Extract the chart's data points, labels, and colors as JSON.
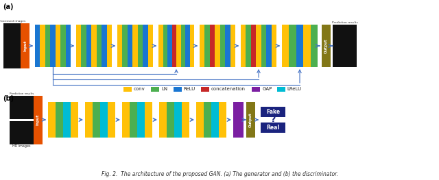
{
  "bg_color": "#ffffff",
  "colors": {
    "conv": "#FFC107",
    "LN": "#4CAF50",
    "ReLU": "#1976D2",
    "concatenation": "#C62828",
    "GAP": "#7B1FA2",
    "LReLU": "#00BCD4",
    "input_box": "#E65100",
    "output_box": "#827717",
    "arrow": "#4472C4",
    "fake_real_box": "#1A237E",
    "q_mark": "#1A237E"
  },
  "legend_items": [
    {
      "label": "conv",
      "color": "#FFC107"
    },
    {
      "label": "LN",
      "color": "#4CAF50"
    },
    {
      "label": "ReLU",
      "color": "#1976D2"
    },
    {
      "label": "concatenation",
      "color": "#C62828"
    },
    {
      "label": "GAP",
      "color": "#7B1FA2"
    },
    {
      "label": "LReLU",
      "color": "#00BCD4"
    }
  ],
  "caption": "Fig. 2.  The architecture of the proposed GAN. (a) The generator and (b) the discriminator.",
  "gen_stripes": [
    [
      "#1976D2",
      "#FFC107",
      "#4CAF50",
      "#1976D2",
      "#FFC107",
      "#4CAF50",
      "#1976D2"
    ],
    [
      "#FFC107",
      "#4CAF50",
      "#1976D2",
      "#FFC107",
      "#4CAF50",
      "#1976D2",
      "#FFC107"
    ],
    [
      "#FFC107",
      "#4CAF50",
      "#1976D2",
      "#FFC107",
      "#4CAF50",
      "#1976D2",
      "#FFC107"
    ],
    [
      "#FFC107",
      "#4CAF50",
      "#1976D2",
      "#C62828",
      "#FFC107",
      "#4CAF50",
      "#1976D2",
      "#FFC107"
    ],
    [
      "#FFC107",
      "#4CAF50",
      "#C62828",
      "#FFC107",
      "#4CAF50",
      "#1976D2",
      "#FFC107"
    ],
    [
      "#FFC107",
      "#4CAF50",
      "#C62828",
      "#FFC107",
      "#4CAF50",
      "#1976D2",
      "#FFC107"
    ],
    [
      "#FFC107",
      "#4CAF50",
      "#1976D2",
      "#FFC107",
      "#4CAF50"
    ]
  ],
  "disc_stripes": [
    [
      "#FFC107",
      "#4CAF50",
      "#00BCD4",
      "#FFC107"
    ],
    [
      "#FFC107",
      "#4CAF50",
      "#00BCD4",
      "#FFC107"
    ],
    [
      "#FFC107",
      "#4CAF50",
      "#00BCD4",
      "#FFC107"
    ],
    [
      "#FFC107",
      "#4CAF50",
      "#00BCD4",
      "#FFC107"
    ],
    [
      "#FFC107",
      "#4CAF50",
      "#00BCD4",
      "#FFC107"
    ]
  ]
}
